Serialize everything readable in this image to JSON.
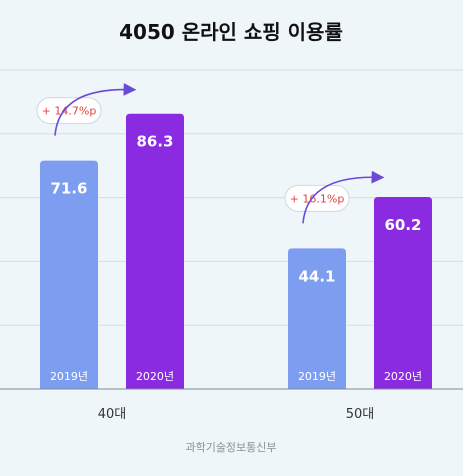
{
  "chart_data": {
    "type": "bar",
    "title": "4050 온라인 쇼핑 이용률",
    "categories": [
      "40대",
      "50대"
    ],
    "series": [
      {
        "name": "2019년",
        "values": [
          71.6,
          44.1
        ],
        "color": "#7d9ef0"
      },
      {
        "name": "2020년",
        "values": [
          86.3,
          60.2
        ],
        "color": "#8a2be2"
      }
    ],
    "changes": [
      "+ 14.7%p",
      "+ 16.1%p"
    ],
    "change_color": "#e8413c",
    "ylim": [
      0,
      100
    ],
    "grid": true,
    "source": "과학기술정보통신부"
  }
}
